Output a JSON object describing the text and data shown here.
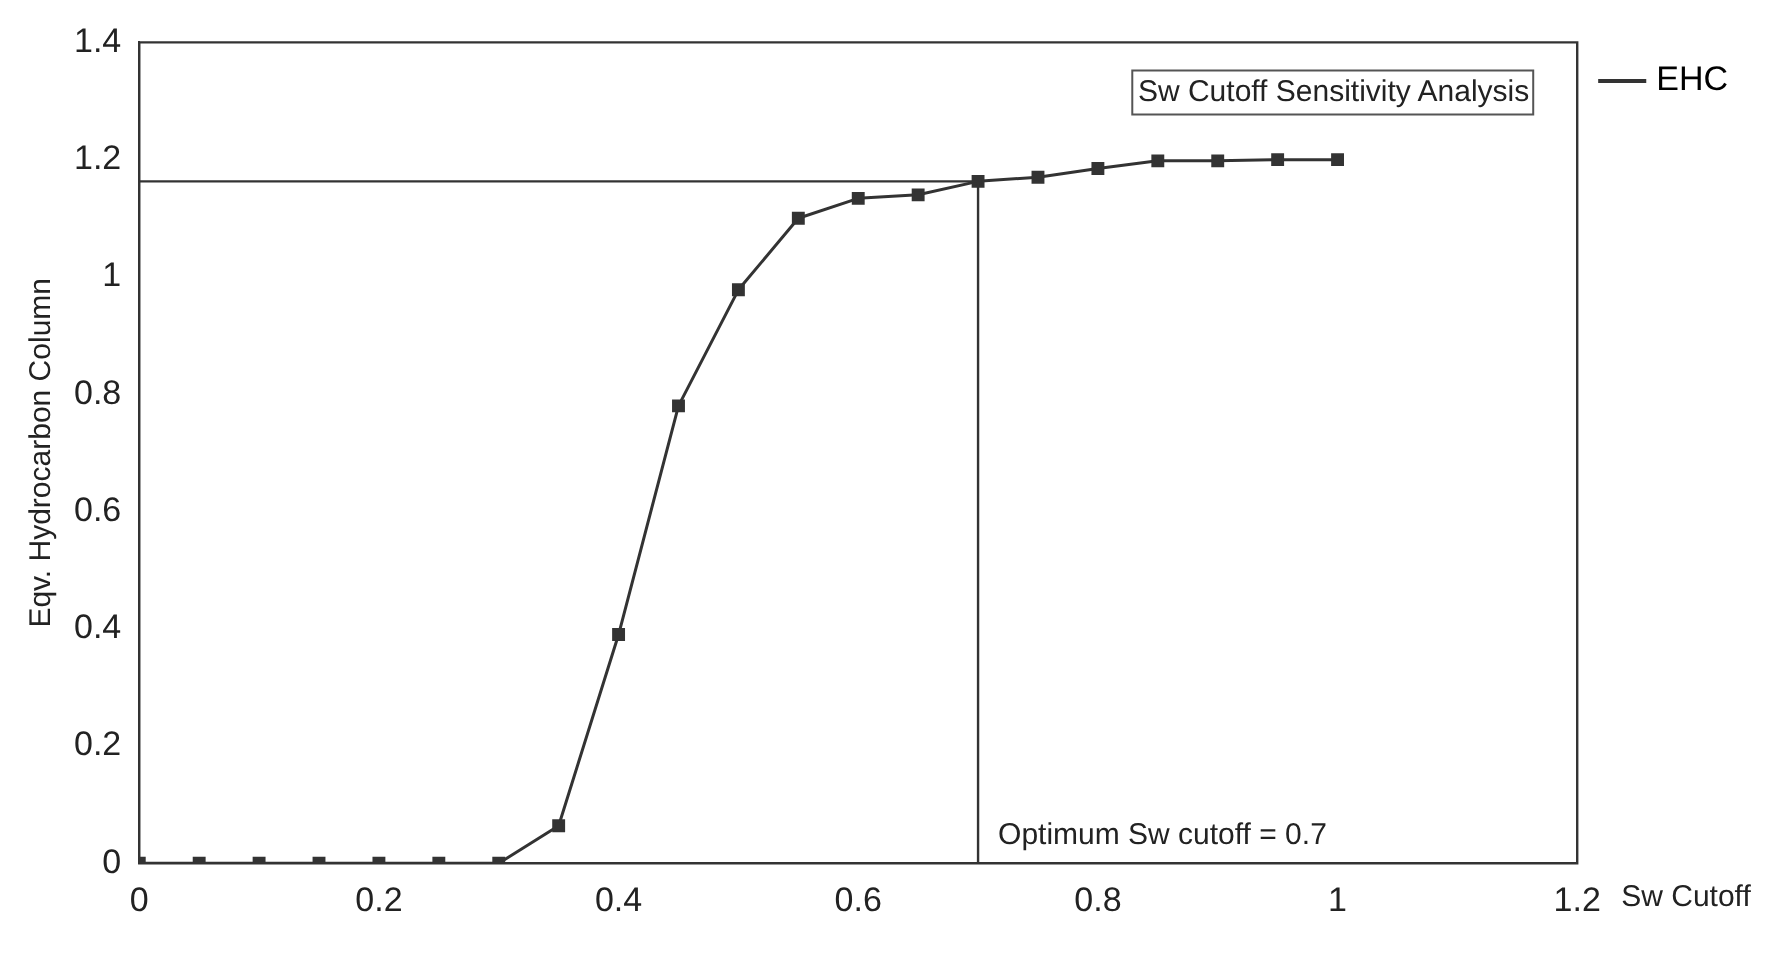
{
  "chart_data": {
    "type": "line",
    "title": "Sw Cutoff Sensitivity Analysis",
    "xlabel": "Sw Cutoff",
    "ylabel": "Eqv. Hydrocarbon Column",
    "x": [
      0,
      0.05,
      0.1,
      0.15,
      0.2,
      0.25,
      0.3,
      0.35,
      0.4,
      0.45,
      0.5,
      0.55,
      0.6,
      0.65,
      0.7,
      0.75,
      0.8,
      0.85,
      0.9,
      0.95,
      1
    ],
    "series": [
      {
        "name": "EHC",
        "color": "#333333",
        "values": [
          0,
          0,
          0,
          0,
          0,
          0,
          0,
          0.064,
          0.39,
          0.78,
          0.978,
          1.1,
          1.134,
          1.14,
          1.163,
          1.17,
          1.185,
          1.198,
          1.198,
          1.2,
          1.2
        ]
      }
    ],
    "xlim": [
      0,
      1.2
    ],
    "xticks": [
      0,
      {
        "value": 0.2,
        "label": "0.2"
      },
      {
        "value": 0.4,
        "label": "0.4"
      },
      {
        "value": 0.6,
        "label": "0.6"
      },
      {
        "value": 0.8,
        "label": "0.8"
      },
      1,
      {
        "value": 1.2,
        "label": "1.2"
      }
    ],
    "ylim": [
      0,
      1.4
    ],
    "yticks": [
      0,
      {
        "value": 0.2,
        "label": "0.2"
      },
      {
        "value": 0.4,
        "label": "0.4"
      },
      {
        "value": 0.6,
        "label": "0.6"
      },
      {
        "value": 0.8,
        "label": "0.8"
      },
      1,
      {
        "value": 1.2,
        "label": "1.2"
      },
      {
        "value": 1.4,
        "label": "1.4"
      }
    ],
    "ref_lines": [
      {
        "axis": "y",
        "value": 1.163,
        "label": null
      },
      {
        "axis": "x",
        "value": 0.7,
        "label": "Optimum Sw cutoff = 0.7"
      }
    ],
    "grid": false,
    "legend": "top right",
    "marker": "square",
    "line_style": "solid"
  }
}
